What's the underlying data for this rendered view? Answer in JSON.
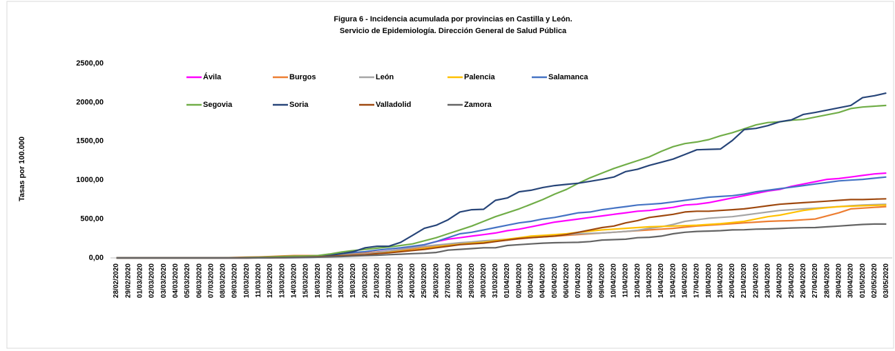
{
  "chart_data": {
    "type": "line",
    "title": "Figura 6 - Incidencia acumulada por provincias en Castilla y León.",
    "subtitle": "Servicio de Epidemiología. Dirección General de Salud Pública",
    "y_label": "Tasas por 100.000",
    "categories": [
      "28/02/2020",
      "29/02/2020",
      "01/03/2020",
      "02/03/2020",
      "03/03/2020",
      "04/03/2020",
      "05/03/2020",
      "06/03/2020",
      "07/03/2020",
      "08/03/2020",
      "09/03/2020",
      "10/03/2020",
      "11/03/2020",
      "12/03/2020",
      "13/03/2020",
      "14/03/2020",
      "15/03/2020",
      "16/03/2020",
      "17/03/2020",
      "18/03/2020",
      "19/03/2020",
      "20/03/2020",
      "21/03/2020",
      "22/03/2020",
      "23/03/2020",
      "24/03/2020",
      "25/03/2020",
      "26/03/2020",
      "27/03/2020",
      "28/03/2020",
      "29/03/2020",
      "30/03/2020",
      "31/03/2020",
      "01/04/2020",
      "02/04/2020",
      "03/04/2020",
      "04/04/2020",
      "05/04/2020",
      "06/04/2020",
      "07/04/2020",
      "08/04/2020",
      "09/04/2020",
      "10/04/2020",
      "11/04/2020",
      "12/04/2020",
      "13/04/2020",
      "14/04/2020",
      "15/04/2020",
      "16/04/2020",
      "17/04/2020",
      "18/04/2020",
      "19/04/2020",
      "20/04/2020",
      "21/04/2020",
      "22/04/2020",
      "23/04/2020",
      "24/04/2020",
      "25/04/2020",
      "26/04/2020",
      "27/04/2020",
      "28/04/2020",
      "29/04/2020",
      "30/04/2020",
      "01/05/2020",
      "02/05/2020",
      "03/05/2020"
    ],
    "series": [
      {
        "name": "Ávila",
        "color": "#ff00ff",
        "values": [
          0,
          0,
          0,
          0,
          0,
          0,
          0,
          0,
          0,
          0,
          0,
          0,
          2,
          4,
          6,
          8,
          12,
          18,
          25,
          35,
          45,
          60,
          75,
          90,
          110,
          140,
          170,
          210,
          240,
          260,
          280,
          300,
          320,
          350,
          370,
          400,
          430,
          460,
          480,
          500,
          520,
          540,
          560,
          580,
          600,
          610,
          630,
          650,
          680,
          690,
          710,
          740,
          770,
          800,
          830,
          860,
          880,
          920,
          950,
          980,
          1010,
          1020,
          1040,
          1060,
          1080,
          1090
        ]
      },
      {
        "name": "Burgos",
        "color": "#ed7d31",
        "values": [
          0,
          0,
          0,
          0,
          0,
          0,
          0,
          0,
          0,
          2,
          5,
          10,
          12,
          18,
          25,
          30,
          30,
          30,
          35,
          45,
          55,
          60,
          75,
          85,
          100,
          120,
          140,
          155,
          170,
          180,
          190,
          200,
          215,
          230,
          245,
          260,
          270,
          280,
          290,
          300,
          310,
          320,
          330,
          340,
          350,
          360,
          370,
          380,
          395,
          410,
          420,
          430,
          440,
          450,
          460,
          470,
          475,
          480,
          490,
          500,
          540,
          580,
          630,
          640,
          650,
          660
        ]
      },
      {
        "name": "León",
        "color": "#a5a5a5",
        "values": [
          0,
          0,
          0,
          0,
          0,
          0,
          0,
          0,
          0,
          0,
          0,
          0,
          2,
          4,
          6,
          10,
          15,
          20,
          28,
          38,
          45,
          50,
          70,
          90,
          110,
          130,
          150,
          165,
          180,
          195,
          205,
          220,
          230,
          240,
          255,
          270,
          280,
          290,
          300,
          310,
          315,
          320,
          330,
          340,
          355,
          380,
          400,
          430,
          470,
          490,
          510,
          520,
          530,
          550,
          570,
          590,
          610,
          620,
          630,
          640,
          650,
          660,
          670,
          680,
          685,
          690
        ]
      },
      {
        "name": "Palencia",
        "color": "#ffc000",
        "values": [
          0,
          0,
          0,
          0,
          0,
          0,
          0,
          0,
          0,
          0,
          0,
          0,
          1,
          2,
          4,
          6,
          10,
          15,
          20,
          28,
          35,
          40,
          55,
          70,
          85,
          100,
          120,
          140,
          160,
          175,
          190,
          200,
          220,
          240,
          260,
          280,
          290,
          300,
          310,
          330,
          345,
          360,
          370,
          380,
          390,
          400,
          405,
          410,
          415,
          420,
          430,
          440,
          455,
          470,
          500,
          530,
          550,
          580,
          610,
          630,
          645,
          660,
          665,
          670,
          675,
          680
        ]
      },
      {
        "name": "Salamanca",
        "color": "#4472c4",
        "values": [
          0,
          0,
          0,
          0,
          0,
          0,
          0,
          0,
          0,
          0,
          0,
          0,
          2,
          4,
          8,
          12,
          18,
          25,
          40,
          55,
          70,
          80,
          100,
          115,
          130,
          150,
          170,
          210,
          260,
          310,
          330,
          360,
          390,
          420,
          450,
          470,
          500,
          520,
          550,
          580,
          590,
          620,
          640,
          660,
          680,
          690,
          700,
          720,
          740,
          760,
          780,
          790,
          800,
          820,
          850,
          870,
          890,
          910,
          930,
          950,
          970,
          990,
          1000,
          1010,
          1025,
          1040
        ]
      },
      {
        "name": "Segovia",
        "color": "#70ad47",
        "values": [
          0,
          0,
          0,
          0,
          0,
          0,
          0,
          0,
          0,
          0,
          2,
          5,
          8,
          12,
          18,
          22,
          25,
          30,
          50,
          75,
          95,
          110,
          125,
          140,
          160,
          180,
          220,
          260,
          310,
          360,
          410,
          470,
          530,
          580,
          630,
          690,
          750,
          820,
          880,
          960,
          1030,
          1090,
          1150,
          1200,
          1250,
          1300,
          1370,
          1430,
          1470,
          1490,
          1520,
          1570,
          1610,
          1660,
          1710,
          1740,
          1750,
          1770,
          1780,
          1810,
          1840,
          1870,
          1920,
          1940,
          1950,
          1960
        ]
      },
      {
        "name": "Soria",
        "color": "#264478",
        "values": [
          0,
          0,
          0,
          0,
          0,
          0,
          0,
          0,
          0,
          0,
          0,
          0,
          0,
          0,
          2,
          3,
          5,
          10,
          30,
          55,
          80,
          130,
          150,
          150,
          200,
          290,
          380,
          420,
          490,
          590,
          620,
          625,
          740,
          770,
          850,
          870,
          905,
          930,
          945,
          960,
          985,
          1010,
          1040,
          1110,
          1140,
          1190,
          1230,
          1270,
          1330,
          1390,
          1395,
          1400,
          1510,
          1650,
          1665,
          1700,
          1750,
          1775,
          1845,
          1870,
          1900,
          1930,
          1960,
          2060,
          2085,
          2120
        ]
      },
      {
        "name": "Valladolid",
        "color": "#9e480e",
        "values": [
          0,
          0,
          0,
          0,
          0,
          0,
          0,
          0,
          0,
          0,
          0,
          0,
          1,
          2,
          4,
          6,
          10,
          15,
          20,
          28,
          35,
          40,
          55,
          65,
          80,
          95,
          110,
          130,
          150,
          170,
          180,
          190,
          210,
          230,
          250,
          260,
          270,
          280,
          300,
          330,
          360,
          390,
          410,
          450,
          480,
          520,
          540,
          560,
          590,
          600,
          600,
          610,
          620,
          630,
          650,
          670,
          690,
          700,
          710,
          720,
          730,
          740,
          750,
          750,
          755,
          760
        ]
      },
      {
        "name": "Zamora",
        "color": "#636363",
        "values": [
          0,
          0,
          0,
          0,
          0,
          0,
          0,
          0,
          0,
          0,
          0,
          0,
          1,
          2,
          3,
          5,
          8,
          10,
          14,
          18,
          24,
          30,
          35,
          42,
          48,
          55,
          60,
          70,
          100,
          110,
          120,
          130,
          130,
          160,
          170,
          180,
          190,
          195,
          198,
          200,
          210,
          230,
          235,
          240,
          260,
          265,
          280,
          310,
          330,
          340,
          345,
          350,
          360,
          362,
          370,
          372,
          378,
          385,
          388,
          390,
          400,
          410,
          420,
          430,
          435,
          435
        ]
      }
    ],
    "ylim": [
      0,
      2500
    ],
    "yticks": [
      {
        "value": 0,
        "label": "0,00"
      },
      {
        "value": 500,
        "label": "500,00"
      },
      {
        "value": 1000,
        "label": "1000,00"
      },
      {
        "value": 1500,
        "label": "1500,00"
      },
      {
        "value": 2000,
        "label": "2000,00"
      },
      {
        "value": 2500,
        "label": "2500,00"
      }
    ],
    "grid": false
  }
}
